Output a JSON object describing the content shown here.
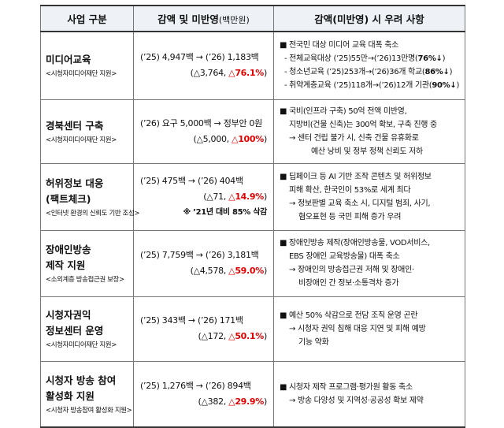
{
  "header": {
    "col1": "사업 구분",
    "col2": "감액 및 미반영",
    "col2_suffix": "(백만원)",
    "col3": "감액(미반영) 시 우려 사항"
  },
  "rows": [
    {
      "title": "미디어교육",
      "sub": "<시청자미디어재단 지원>",
      "amount_line": "(’25) 4,947백 → (’26) 1,183백",
      "delta": "(△3,764,",
      "pct": "△76.1%",
      "pct_close": ")",
      "concerns": [
        "■ 전국민 대상 미디어 교육 대폭 축소",
        "- 전체교육대상 (’25)55만→(’26)13만명(",
        "76%↓",
        ")",
        "- 청소년교육 (’25)253개→(’26)36개 학교(",
        "86%↓",
        ")",
        "- 취약계층교육 (’25)118개→(’26)12개 기관(",
        "90%↓",
        ")"
      ]
    },
    {
      "title": "경북센터 구축",
      "sub": "<시청자미디어재단 지원>",
      "amount_line": "(’26) 요구 5,000백 → 정부안 0원",
      "delta": "(△5,000,",
      "pct": "△100%",
      "pct_close": ")",
      "concerns": [
        "■ 국비(인프라 구축) 50억 전액 미반영,",
        "지방비(건물 신축)는 300억 확보, 구축 진행 중",
        "→ 센터 건립 불가 시, 신축 건물 유휴화로",
        "예산 낭비 및 정부 정책 신뢰도 저하"
      ]
    },
    {
      "title": "허위정보 대응\n(팩트체크)",
      "sub": "<인터넷 환경의 신뢰도 기반 조성>",
      "amount_line": "(’25) 475백 → (’26) 404백",
      "delta": "(△71,",
      "pct": "△14.9%",
      "pct_close": ")",
      "note": "※ ’21년 대비 85% 삭감",
      "concerns": [
        "■ 딥페이크 등 AI 기반 조작 콘텐츠 및 허위정보",
        "피해 확산, 한국인이 53%로 세계 최다",
        "→ 정보판별 교육 축소 시, 디지털 범죄, 사기,",
        "혐오표현 등 국민 피해 증가 우려"
      ]
    },
    {
      "title": "장애인방송\n제작 지원",
      "sub": "<소외계층 방송접근권 보장>",
      "amount_line": "(’25) 7,759백 → (’26) 3,181백",
      "delta": "(△4,578,",
      "pct": "△59.0%",
      "pct_close": ")",
      "concerns": [
        "■ 장애인방송 제작(장애인방송물, VOD서비스,",
        "EBS 장애인 교육방송물) 대폭 축소",
        "→ 장애인의 방송접근권 저해 및 장애인·",
        "비장애인 간 정보·소통격차 증가"
      ]
    },
    {
      "title": "시청자권익\n정보센터 운영",
      "sub": "<시청자미디어재단 지원>",
      "amount_line": "(’25) 343백 → (’26) 171백",
      "delta": "(△172,",
      "pct": "△50.1%",
      "pct_close": ")",
      "concerns": [
        "■ 예산 50% 삭감으로 전담 조직 운영 곤란",
        "→ 시청자 권익 침해 대응 지연 및 피해 예방",
        "기능 약화"
      ]
    },
    {
      "title": "시청자 방송 참여\n활성화 지원",
      "sub": "<시청자 방송참여 활성화 지원>",
      "amount_line": "(’25) 1,276백 → (’26) 894백",
      "delta": "(△382,",
      "pct": "△29.9%",
      "pct_close": ")",
      "concerns": [
        "■ 시청자 제작 프로그램·평가원 활동 축소",
        "→ 방송 다양성 및 지역성·공공성 확보 제약"
      ]
    }
  ]
}
